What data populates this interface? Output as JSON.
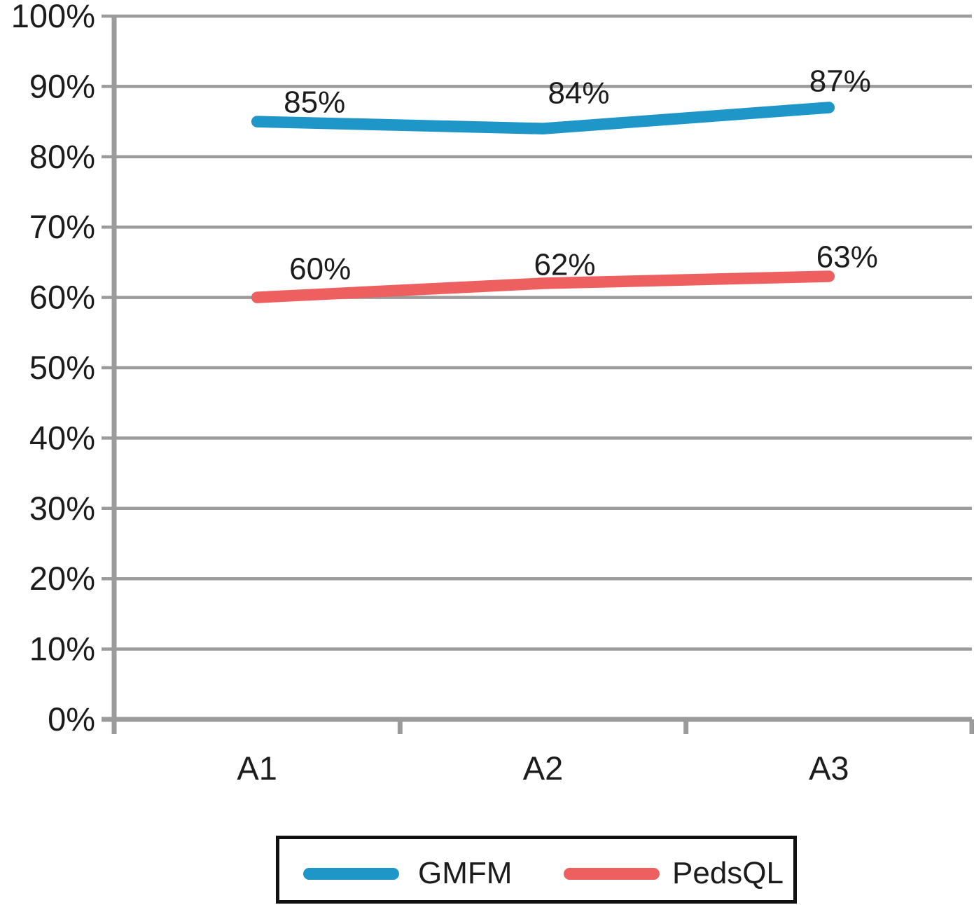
{
  "chart_data": {
    "type": "line",
    "categories": [
      "A1",
      "A2",
      "A3"
    ],
    "series": [
      {
        "name": "GMFM",
        "color": "#1e96c8",
        "values": [
          85,
          84,
          87
        ],
        "data_labels": [
          "85%",
          "84%",
          "87%"
        ],
        "label_offsets": [
          [
            82,
            -28
          ],
          [
            51,
            -51
          ],
          [
            16,
            -38
          ]
        ]
      },
      {
        "name": "PedsQL",
        "color": "#ee5f5f",
        "values": [
          60,
          62,
          63
        ],
        "data_labels": [
          "60%",
          "62%",
          "63%"
        ],
        "label_offsets": [
          [
            90,
            -41
          ],
          [
            31,
            -27
          ],
          [
            26,
            -28
          ]
        ]
      }
    ],
    "title": "",
    "xlabel": "",
    "ylabel": "",
    "ylim": [
      0,
      100
    ],
    "ytick_step": 10,
    "ytick_labels": [
      "0%",
      "10%",
      "20%",
      "30%",
      "40%",
      "50%",
      "60%",
      "70%",
      "80%",
      "90%",
      "100%"
    ],
    "grid": "horizontal",
    "gridline_color": "#9b9b9b",
    "axis_color": "#9b9b9b",
    "text_color": "#1c1c1c",
    "legend_position": "bottom",
    "legend_border_color": "#111111"
  }
}
